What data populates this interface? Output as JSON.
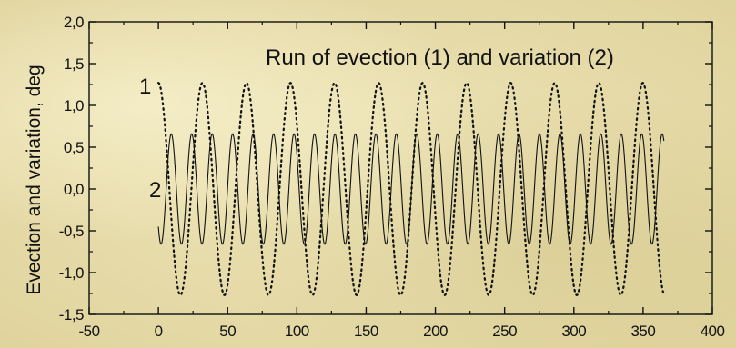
{
  "chart_data": {
    "type": "line",
    "title": "Run of evection (1) and variation (2)",
    "xlabel": "",
    "ylabel": "Evection and variation, deg",
    "xlim": [
      -50,
      400
    ],
    "ylim": [
      -1.5,
      2.0
    ],
    "x_ticks": [
      -50,
      0,
      50,
      100,
      150,
      200,
      250,
      300,
      350,
      400
    ],
    "x_tick_labels": [
      "-50",
      "0",
      "50",
      "100",
      "150",
      "200",
      "250",
      "300",
      "350",
      "400"
    ],
    "y_ticks": [
      -1.5,
      -1.0,
      -0.5,
      0.0,
      0.5,
      1.0,
      1.5,
      2.0
    ],
    "y_tick_labels": [
      "-1,5",
      "-1,0",
      "-0,5",
      "0,0",
      "0,5",
      "1,0",
      "1,5",
      "2,0"
    ],
    "grid": false,
    "series": [
      {
        "name": "1",
        "style": "dotted",
        "amplitude": 1.27,
        "period_days": 31.8,
        "x_start": 0,
        "x_end": 365,
        "value_at_start": 1.27
      },
      {
        "name": "2",
        "style": "solid",
        "amplitude": 0.66,
        "period_days": 14.77,
        "x_start": 0,
        "x_end": 365,
        "value_at_start": -0.45
      }
    ],
    "annotations": [
      {
        "text": "1",
        "x": -5,
        "y": 1.22
      },
      {
        "text": "2",
        "x": -3,
        "y": 0.02
      }
    ]
  }
}
